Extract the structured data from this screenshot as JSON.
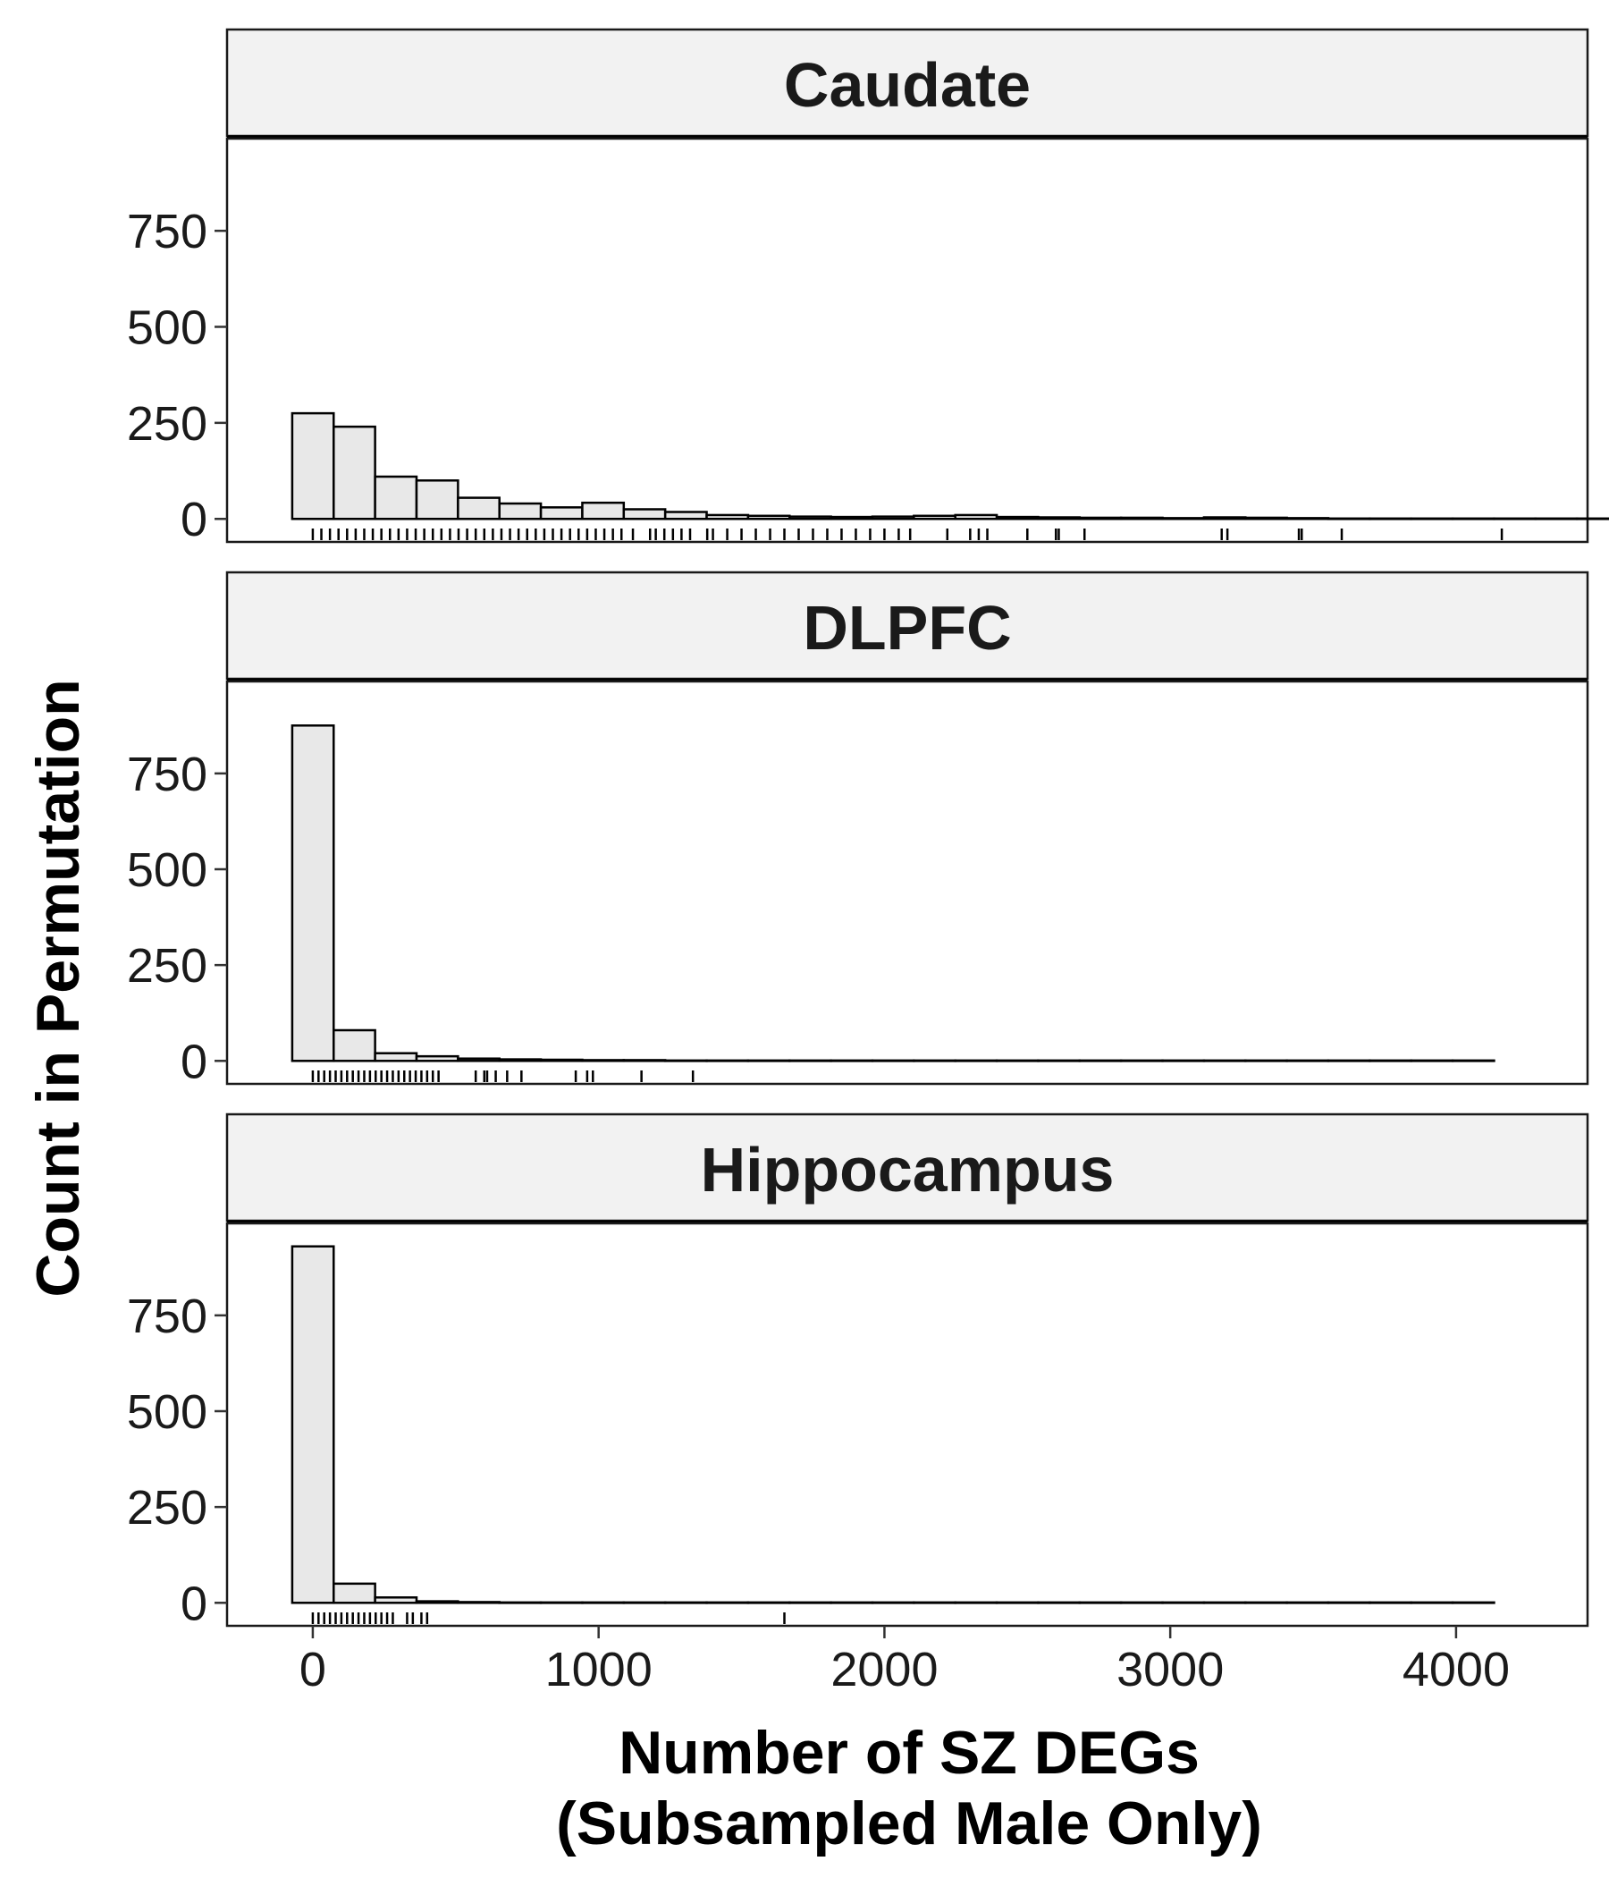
{
  "chart_data": {
    "type": "bar",
    "subtype": "faceted-histogram-with-rug",
    "xlabel": [
      "Number of SZ DEGs",
      "(Subsampled Male Only)"
    ],
    "ylabel": "Count in Permutation",
    "xlim": [
      -300,
      4460
    ],
    "ylim": [
      -60,
      990
    ],
    "x_ticks": [
      0,
      1000,
      2000,
      3000,
      4000
    ],
    "x_tick_labels": [
      "0",
      "1000",
      "2000",
      "3000",
      "4000"
    ],
    "y_ticks": [
      0,
      250,
      500,
      750
    ],
    "y_tick_labels": [
      "0",
      "250",
      "500",
      "750"
    ],
    "bin_width": 145,
    "bin_start": -72,
    "bar_fill": "#e8e8e8",
    "bar_stroke": "#000000",
    "strip_fill": "#f2f2f2",
    "facets": [
      {
        "title": "Caudate",
        "counts": [
          275,
          240,
          110,
          100,
          55,
          40,
          30,
          42,
          25,
          18,
          10,
          8,
          6,
          5,
          6,
          8,
          10,
          5,
          4,
          3,
          3,
          2,
          4,
          3,
          2,
          1,
          1,
          1,
          1,
          1,
          1,
          1,
          1,
          2,
          1,
          1,
          1,
          1,
          1,
          1,
          1,
          1,
          1,
          1,
          1,
          1,
          1,
          1,
          1,
          1,
          1,
          1,
          1,
          1,
          1,
          1,
          1,
          1,
          1,
          1,
          1,
          1,
          1,
          1,
          1,
          1,
          1,
          1,
          1,
          1,
          1,
          1,
          1,
          1,
          1,
          1,
          1,
          1,
          1,
          1,
          1,
          1,
          1,
          1,
          1,
          1,
          1,
          1,
          1,
          1,
          1
        ],
        "rug": [
          0,
          30,
          60,
          90,
          120,
          150,
          180,
          210,
          240,
          270,
          300,
          330,
          360,
          390,
          420,
          450,
          480,
          510,
          540,
          570,
          600,
          630,
          660,
          690,
          720,
          750,
          780,
          810,
          840,
          870,
          900,
          930,
          960,
          990,
          1020,
          1050,
          1080,
          1120,
          1180,
          1200,
          1230,
          1260,
          1290,
          1320,
          1380,
          1400,
          1450,
          1500,
          1550,
          1600,
          1650,
          1700,
          1750,
          1800,
          1850,
          1900,
          1950,
          2000,
          2050,
          2090,
          2220,
          2300,
          2330,
          2360,
          2500,
          2600,
          2610,
          2700,
          3180,
          3200,
          3450,
          3460,
          3600,
          4160
        ]
      },
      {
        "title": "DLPFC",
        "counts": [
          875,
          80,
          20,
          12,
          6,
          4,
          3,
          2,
          2,
          1,
          1,
          1,
          1,
          1,
          1,
          1,
          1,
          1,
          1,
          1,
          1,
          1,
          1,
          1,
          1,
          1,
          1,
          1,
          1
        ],
        "rug": [
          0,
          20,
          40,
          60,
          80,
          100,
          120,
          140,
          160,
          180,
          200,
          220,
          240,
          260,
          280,
          300,
          320,
          340,
          360,
          380,
          400,
          420,
          440,
          570,
          600,
          610,
          640,
          680,
          730,
          920,
          960,
          980,
          1150,
          1330
        ]
      },
      {
        "title": "Hippocampus",
        "counts": [
          930,
          50,
          14,
          4,
          2,
          1,
          1,
          1,
          1,
          1,
          1,
          1,
          1,
          1,
          1,
          1,
          1,
          1,
          1,
          1,
          1,
          1,
          1,
          1,
          1,
          1,
          1,
          1,
          1
        ],
        "rug": [
          0,
          20,
          40,
          60,
          80,
          100,
          120,
          140,
          160,
          180,
          200,
          220,
          240,
          260,
          280,
          330,
          350,
          380,
          400,
          1650
        ]
      }
    ]
  }
}
